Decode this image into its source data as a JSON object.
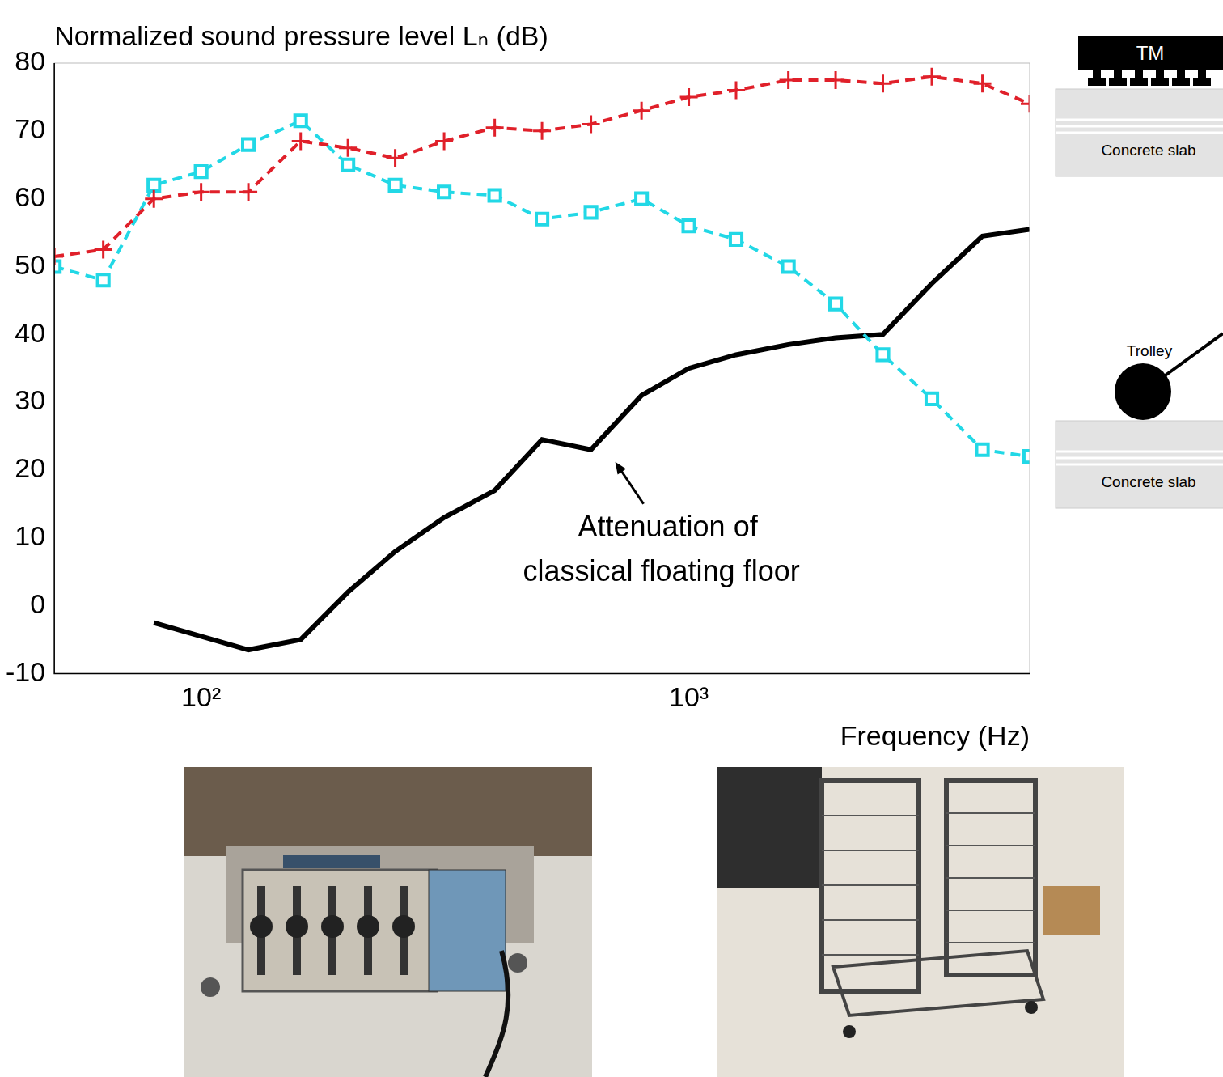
{
  "chart_data": {
    "type": "line",
    "y_label": "Normalized sound pressure level Lₙ (dB)",
    "x_label": "Frequency (Hz)",
    "annotation": "Attenuation of classical floating floor",
    "log": "x",
    "grid": false,
    "x": [
      50,
      63,
      80,
      100,
      125,
      160,
      200,
      250,
      315,
      400,
      500,
      630,
      800,
      1000,
      1250,
      1600,
      2000,
      2500,
      3150,
      4000,
      5000
    ],
    "xlim": [
      50,
      5000
    ],
    "xticks": [
      {
        "value": 100,
        "label": "10²"
      },
      {
        "value": 1000,
        "label": "10³"
      }
    ],
    "ylim": [
      -10,
      80
    ],
    "yticks": [
      -10,
      0,
      10,
      20,
      30,
      40,
      50,
      60,
      70,
      80
    ],
    "series": [
      {
        "color": "#e0202a",
        "marker": "plus",
        "line_style": "dashed",
        "values": [
          51.5,
          52.5,
          60,
          61,
          61,
          68.5,
          67.5,
          66,
          68.5,
          70.5,
          70,
          71,
          73,
          75,
          76,
          77.5,
          77.5,
          77,
          78,
          77,
          74
        ]
      },
      {
        "color": "#22d8e6",
        "marker": "square",
        "line_style": "dashed",
        "values": [
          50,
          48,
          62,
          64,
          68,
          71.5,
          65,
          62,
          61,
          60.5,
          57,
          58,
          60,
          56,
          54,
          50,
          44.5,
          37,
          30.5,
          23,
          22
        ]
      },
      {
        "color": "#000000",
        "marker": "none",
        "line_style": "solid",
        "values": [
          null,
          null,
          -2.5,
          -4.5,
          -6.5,
          -5,
          2,
          8,
          13,
          17,
          24.5,
          23,
          31,
          35,
          37,
          38.5,
          39.5,
          40,
          47.5,
          54.5,
          55.5
        ]
      }
    ]
  },
  "diagrams": {
    "top": {
      "machine": "TM",
      "slab": "Concrete slab"
    },
    "bottom": {
      "object": "Trolley",
      "slab": "Concrete slab"
    }
  }
}
